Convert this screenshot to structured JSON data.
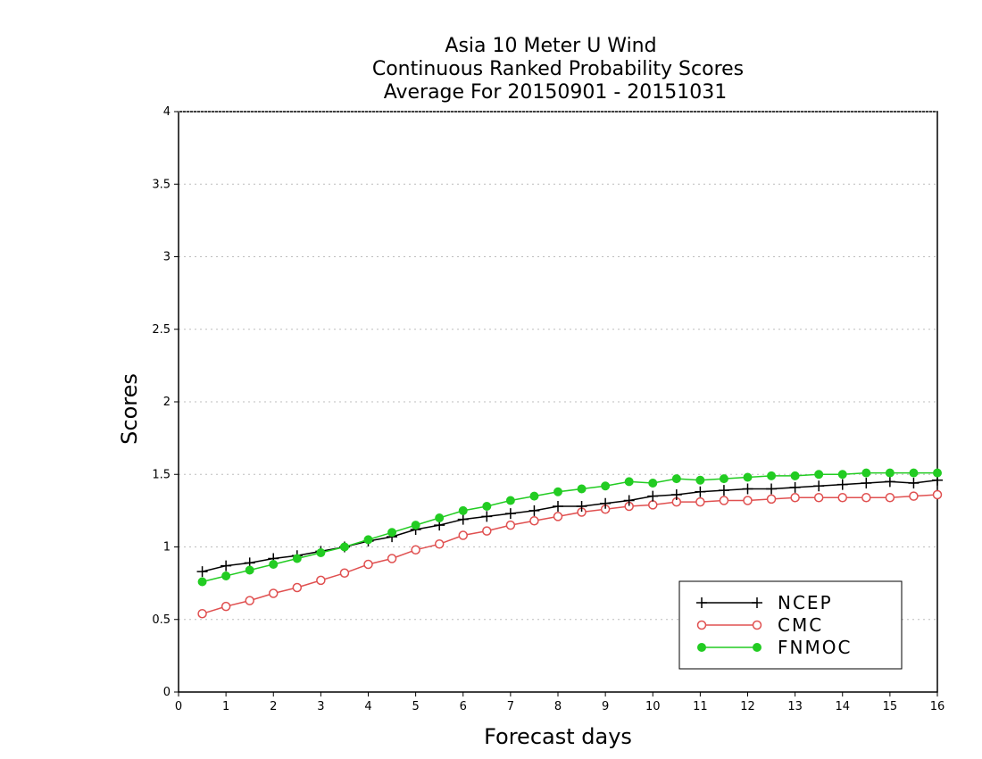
{
  "chart_data": {
    "type": "line",
    "title_lines": [
      "Asia 10 Meter U Wind",
      "Continuous Ranked Probability Scores",
      "Average For 20150901 - 20151031"
    ],
    "xlabel": "Forecast days",
    "ylabel": "Scores",
    "xlim": [
      0,
      16
    ],
    "ylim": [
      0,
      4
    ],
    "x_ticks": [
      "0",
      "1",
      "2",
      "3",
      "4",
      "5",
      "6",
      "7",
      "8",
      "9",
      "10",
      "11",
      "12",
      "13",
      "14",
      "15",
      "16"
    ],
    "y_ticks": [
      "0",
      "0.5",
      "1",
      "1.5",
      "2",
      "2.5",
      "3",
      "3.5",
      "4"
    ],
    "grid": true,
    "legend_position": "bottom-right",
    "x": [
      0.5,
      1,
      1.5,
      2,
      2.5,
      3,
      3.5,
      4,
      4.5,
      5,
      5.5,
      6,
      6.5,
      7,
      7.5,
      8,
      8.5,
      9,
      9.5,
      10,
      10.5,
      11,
      11.5,
      12,
      12.5,
      13,
      13.5,
      14,
      14.5,
      15,
      15.5,
      16
    ],
    "series": [
      {
        "name": "NCEP",
        "color": "#000000",
        "marker": "plus",
        "values": [
          0.83,
          0.87,
          0.89,
          0.92,
          0.94,
          0.97,
          1.0,
          1.04,
          1.07,
          1.12,
          1.15,
          1.19,
          1.21,
          1.23,
          1.25,
          1.28,
          1.28,
          1.3,
          1.32,
          1.35,
          1.36,
          1.38,
          1.39,
          1.4,
          1.4,
          1.41,
          1.42,
          1.43,
          1.44,
          1.45,
          1.44,
          1.46
        ]
      },
      {
        "name": "CMC",
        "color": "#e05050",
        "marker": "open-circle",
        "values": [
          0.54,
          0.59,
          0.63,
          0.68,
          0.72,
          0.77,
          0.82,
          0.88,
          0.92,
          0.98,
          1.02,
          1.08,
          1.11,
          1.15,
          1.18,
          1.21,
          1.24,
          1.26,
          1.28,
          1.29,
          1.31,
          1.31,
          1.32,
          1.32,
          1.33,
          1.34,
          1.34,
          1.34,
          1.34,
          1.34,
          1.35,
          1.36
        ]
      },
      {
        "name": "FNMOC",
        "color": "#22cc22",
        "marker": "filled-circle",
        "values": [
          0.76,
          0.8,
          0.84,
          0.88,
          0.92,
          0.96,
          1.0,
          1.05,
          1.1,
          1.15,
          1.2,
          1.25,
          1.28,
          1.32,
          1.35,
          1.38,
          1.4,
          1.42,
          1.45,
          1.44,
          1.47,
          1.46,
          1.47,
          1.48,
          1.49,
          1.49,
          1.5,
          1.5,
          1.51,
          1.51,
          1.51,
          1.51
        ]
      }
    ]
  }
}
